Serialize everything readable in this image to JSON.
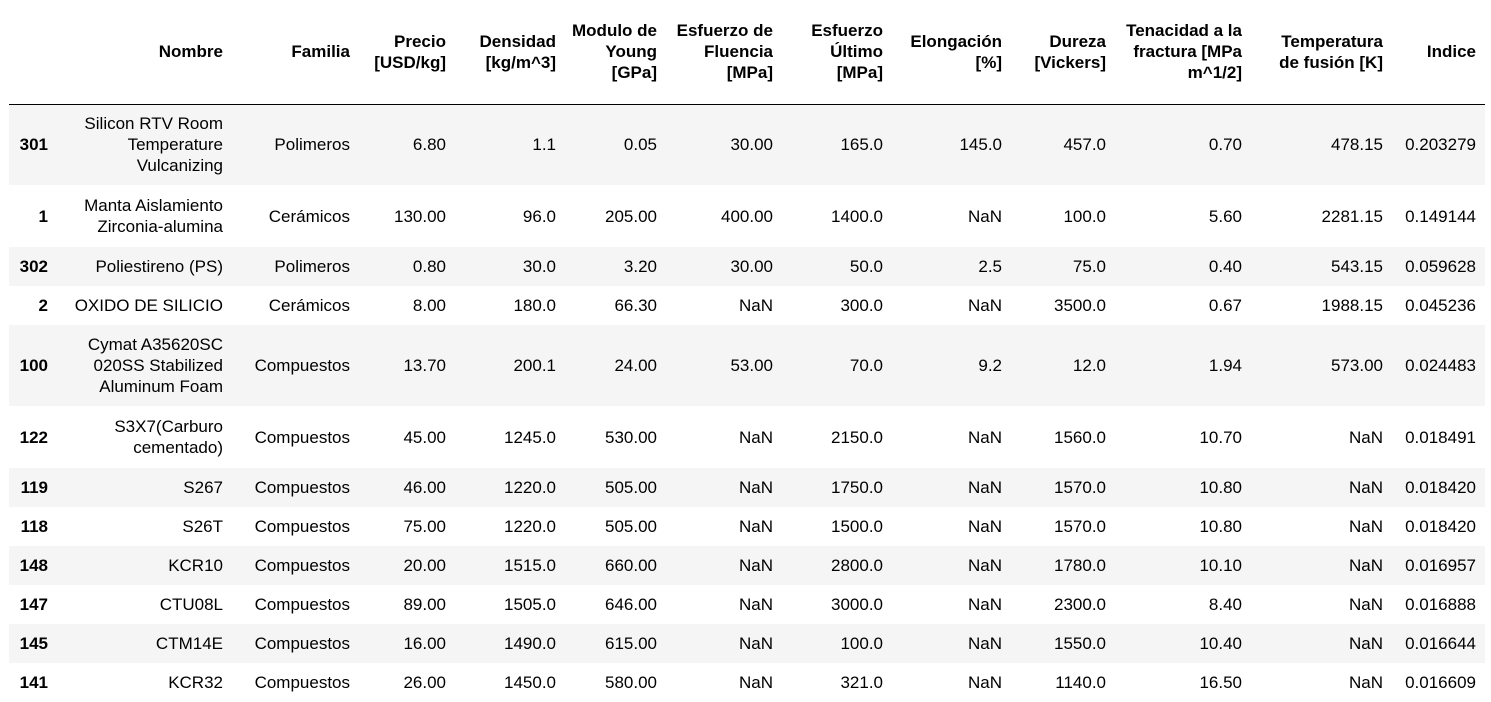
{
  "table": {
    "index_header": "",
    "columns": [
      "Nombre",
      "Familia",
      "Precio [USD/kg]",
      "Densidad [kg/m^3]",
      "Modulo de Young [GPa]",
      "Esfuerzo de Fluencia [MPa]",
      "Esfuerzo Último [MPa]",
      "Elongación [%]",
      "Dureza [Vickers]",
      "Tenacidad a la fractura [MPa m^1/2]",
      "Temperatura de fusión [K]",
      "Indice"
    ],
    "rows": [
      {
        "index": "301",
        "cells": [
          "Silicon RTV Room Temperature Vulcanizing",
          "Polimeros",
          "6.80",
          "1.1",
          "0.05",
          "30.00",
          "165.0",
          "145.0",
          "457.0",
          "0.70",
          "478.15",
          "0.203279"
        ]
      },
      {
        "index": "1",
        "cells": [
          "Manta Aislamiento Zirconia-alumina",
          "Cerámicos",
          "130.00",
          "96.0",
          "205.00",
          "400.00",
          "1400.0",
          "NaN",
          "100.0",
          "5.60",
          "2281.15",
          "0.149144"
        ]
      },
      {
        "index": "302",
        "cells": [
          "Poliestireno (PS)",
          "Polimeros",
          "0.80",
          "30.0",
          "3.20",
          "30.00",
          "50.0",
          "2.5",
          "75.0",
          "0.40",
          "543.15",
          "0.059628"
        ]
      },
      {
        "index": "2",
        "cells": [
          "OXIDO DE SILICIO",
          "Cerámicos",
          "8.00",
          "180.0",
          "66.30",
          "NaN",
          "300.0",
          "NaN",
          "3500.0",
          "0.67",
          "1988.15",
          "0.045236"
        ]
      },
      {
        "index": "100",
        "cells": [
          "Cymat A35620SC 020SS Stabilized Aluminum Foam",
          "Compuestos",
          "13.70",
          "200.1",
          "24.00",
          "53.00",
          "70.0",
          "9.2",
          "12.0",
          "1.94",
          "573.00",
          "0.024483"
        ]
      },
      {
        "index": "122",
        "cells": [
          "S3X7(Carburo cementado)",
          "Compuestos",
          "45.00",
          "1245.0",
          "530.00",
          "NaN",
          "2150.0",
          "NaN",
          "1560.0",
          "10.70",
          "NaN",
          "0.018491"
        ]
      },
      {
        "index": "119",
        "cells": [
          "S267",
          "Compuestos",
          "46.00",
          "1220.0",
          "505.00",
          "NaN",
          "1750.0",
          "NaN",
          "1570.0",
          "10.80",
          "NaN",
          "0.018420"
        ]
      },
      {
        "index": "118",
        "cells": [
          "S26T",
          "Compuestos",
          "75.00",
          "1220.0",
          "505.00",
          "NaN",
          "1500.0",
          "NaN",
          "1570.0",
          "10.80",
          "NaN",
          "0.018420"
        ]
      },
      {
        "index": "148",
        "cells": [
          "KCR10",
          "Compuestos",
          "20.00",
          "1515.0",
          "660.00",
          "NaN",
          "2800.0",
          "NaN",
          "1780.0",
          "10.10",
          "NaN",
          "0.016957"
        ]
      },
      {
        "index": "147",
        "cells": [
          "CTU08L",
          "Compuestos",
          "89.00",
          "1505.0",
          "646.00",
          "NaN",
          "3000.0",
          "NaN",
          "2300.0",
          "8.40",
          "NaN",
          "0.016888"
        ]
      },
      {
        "index": "145",
        "cells": [
          "CTM14E",
          "Compuestos",
          "16.00",
          "1490.0",
          "615.00",
          "NaN",
          "100.0",
          "NaN",
          "1550.0",
          "10.40",
          "NaN",
          "0.016644"
        ]
      },
      {
        "index": "141",
        "cells": [
          "KCR32",
          "Compuestos",
          "26.00",
          "1450.0",
          "580.00",
          "NaN",
          "321.0",
          "NaN",
          "1140.0",
          "16.50",
          "NaN",
          "0.016609"
        ]
      }
    ]
  }
}
